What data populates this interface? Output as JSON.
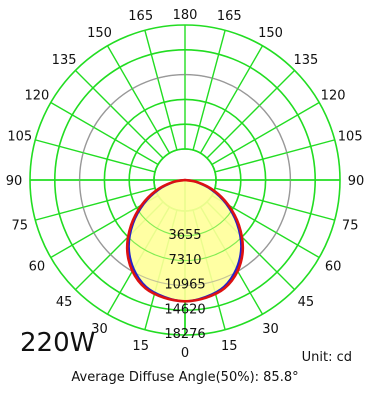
{
  "chart_data": {
    "type": "polar",
    "title": "",
    "angle_labels_left": [
      "180",
      "165",
      "150",
      "135",
      "120",
      "105",
      "90",
      "75",
      "60",
      "45",
      "30",
      "15",
      "0"
    ],
    "angle_labels_right": [
      "165",
      "150",
      "135",
      "120",
      "105",
      "90",
      "75",
      "60",
      "45",
      "30",
      "15"
    ],
    "ring_labels": [
      "3655",
      "7310",
      "10965",
      "14620",
      "18276"
    ],
    "ring_max": 18276,
    "series": [
      {
        "color": "#dd1111",
        "angles": [
          0,
          10,
          20,
          30,
          40,
          50,
          60,
          70,
          80,
          90
        ],
        "values": [
          14300,
          14100,
          13600,
          12400,
          10600,
          8300,
          5900,
          3600,
          1500,
          0
        ]
      },
      {
        "color": "#2222cc",
        "angles": [
          0,
          10,
          20,
          30,
          40,
          50,
          60,
          70,
          80,
          90
        ],
        "values": [
          14300,
          14000,
          13400,
          12100,
          10300,
          8000,
          5600,
          3300,
          1300,
          0
        ]
      }
    ],
    "grid": true
  },
  "labels": {
    "watt": "220W",
    "unit": "Unit: cd",
    "average_angle": "Average Diffuse Angle(50%): 85.8°"
  },
  "colors": {
    "grid_green": "#22dd22",
    "grid_gray": "#999999",
    "fill_yellow": "#ffff99"
  }
}
